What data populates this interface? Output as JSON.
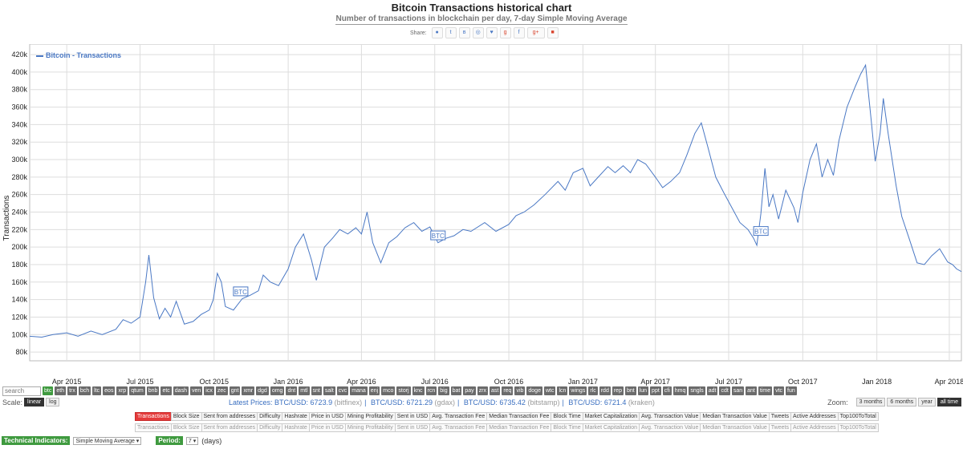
{
  "header": {
    "title": "Bitcoin Transactions historical chart",
    "subtitle": "Number of transactions in blockchain per day, 7-day Simple Moving Average",
    "share_label": "Share:"
  },
  "chart_data": {
    "type": "line",
    "ylabel": "Transactions",
    "yticks": [
      80000,
      100000,
      120000,
      140000,
      160000,
      180000,
      200000,
      220000,
      240000,
      260000,
      280000,
      300000,
      320000,
      340000,
      360000,
      380000,
      400000,
      420000
    ],
    "ytick_labels": [
      "80k",
      "100k",
      "120k",
      "140k",
      "160k",
      "180k",
      "200k",
      "220k",
      "240k",
      "260k",
      "280k",
      "300k",
      "320k",
      "340k",
      "360k",
      "380k",
      "400k",
      "420k"
    ],
    "ylim": [
      70000,
      432000
    ],
    "xlim": [
      "2015-02-14",
      "2018-04-16"
    ],
    "xticks": [
      {
        "date": "2015-04-01",
        "label": "Apr 2015"
      },
      {
        "date": "2015-07-01",
        "label": "Jul 2015"
      },
      {
        "date": "2015-10-01",
        "label": "Oct 2015"
      },
      {
        "date": "2016-01-01",
        "label": "Jan 2016"
      },
      {
        "date": "2016-04-01",
        "label": "Apr 2016"
      },
      {
        "date": "2016-07-01",
        "label": "Jul 2016"
      },
      {
        "date": "2016-10-01",
        "label": "Oct 2016"
      },
      {
        "date": "2017-01-01",
        "label": "Jan 2017"
      },
      {
        "date": "2017-04-01",
        "label": "Apr 2017"
      },
      {
        "date": "2017-07-01",
        "label": "Jul 2017"
      },
      {
        "date": "2017-10-01",
        "label": "Oct 2017"
      },
      {
        "date": "2018-01-01",
        "label": "Jan 2018"
      },
      {
        "date": "2018-04-01",
        "label": "Apr 2018"
      }
    ],
    "grid": true,
    "legend_position": "top-left",
    "series": [
      {
        "name": "Bitcoin - Transactions",
        "color": "#4a78c4",
        "points": [
          [
            "2015-02-14",
            98000
          ],
          [
            "2015-03-01",
            97000
          ],
          [
            "2015-03-15",
            100000
          ],
          [
            "2015-04-01",
            102000
          ],
          [
            "2015-04-15",
            98000
          ],
          [
            "2015-05-01",
            104000
          ],
          [
            "2015-05-15",
            100000
          ],
          [
            "2015-06-01",
            106000
          ],
          [
            "2015-06-10",
            117000
          ],
          [
            "2015-06-20",
            113000
          ],
          [
            "2015-07-01",
            120000
          ],
          [
            "2015-07-08",
            160000
          ],
          [
            "2015-07-12",
            191000
          ],
          [
            "2015-07-18",
            142000
          ],
          [
            "2015-07-25",
            118000
          ],
          [
            "2015-08-01",
            130000
          ],
          [
            "2015-08-08",
            120000
          ],
          [
            "2015-08-15",
            138000
          ],
          [
            "2015-08-25",
            112000
          ],
          [
            "2015-09-05",
            115000
          ],
          [
            "2015-09-15",
            123000
          ],
          [
            "2015-09-25",
            128000
          ],
          [
            "2015-09-30",
            140000
          ],
          [
            "2015-10-05",
            170000
          ],
          [
            "2015-10-10",
            160000
          ],
          [
            "2015-10-15",
            132000
          ],
          [
            "2015-10-25",
            128000
          ],
          [
            "2015-11-05",
            141000
          ],
          [
            "2015-11-15",
            145000
          ],
          [
            "2015-11-25",
            150000
          ],
          [
            "2015-12-01",
            168000
          ],
          [
            "2015-12-10",
            160000
          ],
          [
            "2015-12-20",
            156000
          ],
          [
            "2016-01-01",
            175000
          ],
          [
            "2016-01-10",
            200000
          ],
          [
            "2016-01-20",
            215000
          ],
          [
            "2016-01-30",
            185000
          ],
          [
            "2016-02-05",
            162000
          ],
          [
            "2016-02-15",
            200000
          ],
          [
            "2016-02-25",
            210000
          ],
          [
            "2016-03-05",
            220000
          ],
          [
            "2016-03-15",
            215000
          ],
          [
            "2016-03-25",
            222000
          ],
          [
            "2016-04-01",
            215000
          ],
          [
            "2016-04-08",
            240000
          ],
          [
            "2016-04-15",
            205000
          ],
          [
            "2016-04-25",
            182000
          ],
          [
            "2016-05-05",
            205000
          ],
          [
            "2016-05-15",
            212000
          ],
          [
            "2016-05-25",
            222000
          ],
          [
            "2016-06-05",
            228000
          ],
          [
            "2016-06-15",
            218000
          ],
          [
            "2016-06-25",
            223000
          ],
          [
            "2016-07-05",
            205000
          ],
          [
            "2016-07-15",
            210000
          ],
          [
            "2016-07-25",
            213000
          ],
          [
            "2016-08-05",
            220000
          ],
          [
            "2016-08-15",
            218000
          ],
          [
            "2016-09-01",
            228000
          ],
          [
            "2016-09-15",
            218000
          ],
          [
            "2016-10-01",
            226000
          ],
          [
            "2016-10-10",
            236000
          ],
          [
            "2016-10-20",
            240000
          ],
          [
            "2016-11-01",
            248000
          ],
          [
            "2016-11-15",
            260000
          ],
          [
            "2016-12-01",
            275000
          ],
          [
            "2016-12-10",
            265000
          ],
          [
            "2016-12-20",
            285000
          ],
          [
            "2017-01-01",
            290000
          ],
          [
            "2017-01-10",
            270000
          ],
          [
            "2017-01-20",
            280000
          ],
          [
            "2017-02-01",
            292000
          ],
          [
            "2017-02-10",
            285000
          ],
          [
            "2017-02-20",
            293000
          ],
          [
            "2017-03-01",
            285000
          ],
          [
            "2017-03-10",
            300000
          ],
          [
            "2017-03-20",
            295000
          ],
          [
            "2017-04-01",
            280000
          ],
          [
            "2017-04-10",
            268000
          ],
          [
            "2017-04-20",
            275000
          ],
          [
            "2017-05-01",
            285000
          ],
          [
            "2017-05-10",
            305000
          ],
          [
            "2017-05-20",
            330000
          ],
          [
            "2017-05-28",
            342000
          ],
          [
            "2017-06-05",
            315000
          ],
          [
            "2017-06-15",
            280000
          ],
          [
            "2017-06-25",
            262000
          ],
          [
            "2017-07-05",
            245000
          ],
          [
            "2017-07-15",
            228000
          ],
          [
            "2017-07-25",
            220000
          ],
          [
            "2017-08-01",
            210000
          ],
          [
            "2017-08-05",
            202000
          ],
          [
            "2017-08-10",
            238000
          ],
          [
            "2017-08-15",
            290000
          ],
          [
            "2017-08-20",
            246000
          ],
          [
            "2017-08-25",
            260000
          ],
          [
            "2017-09-01",
            232000
          ],
          [
            "2017-09-10",
            265000
          ],
          [
            "2017-09-20",
            245000
          ],
          [
            "2017-09-25",
            228000
          ],
          [
            "2017-10-01",
            262000
          ],
          [
            "2017-10-10",
            300000
          ],
          [
            "2017-10-18",
            318000
          ],
          [
            "2017-10-25",
            280000
          ],
          [
            "2017-11-01",
            300000
          ],
          [
            "2017-11-08",
            282000
          ],
          [
            "2017-11-15",
            322000
          ],
          [
            "2017-11-25",
            360000
          ],
          [
            "2017-12-05",
            383000
          ],
          [
            "2017-12-12",
            398000
          ],
          [
            "2017-12-18",
            408000
          ],
          [
            "2017-12-25",
            345000
          ],
          [
            "2017-12-30",
            298000
          ],
          [
            "2018-01-05",
            330000
          ],
          [
            "2018-01-09",
            370000
          ],
          [
            "2018-01-15",
            330000
          ],
          [
            "2018-01-25",
            270000
          ],
          [
            "2018-02-01",
            235000
          ],
          [
            "2018-02-10",
            210000
          ],
          [
            "2018-02-20",
            182000
          ],
          [
            "2018-03-01",
            180000
          ],
          [
            "2018-03-10",
            190000
          ],
          [
            "2018-03-20",
            198000
          ],
          [
            "2018-03-30",
            183000
          ],
          [
            "2018-04-05",
            180000
          ],
          [
            "2018-04-10",
            175000
          ],
          [
            "2018-04-16",
            172000
          ]
        ]
      }
    ],
    "annotations": [
      {
        "date": "2015-11-03",
        "value": 148000,
        "label": "BTC"
      },
      {
        "date": "2016-07-05",
        "value": 212000,
        "label": "BTC"
      },
      {
        "date": "2017-08-10",
        "value": 217000,
        "label": "BTC"
      }
    ]
  },
  "coins": {
    "search_placeholder": "search",
    "items": [
      "btc",
      "eth",
      "trx",
      "bch",
      "ltc",
      "eos",
      "xrp",
      "qtum",
      "bnb",
      "etc",
      "dash",
      "ven",
      "icx",
      "zec",
      "gnt",
      "xmr",
      "dgd",
      "omg",
      "dnt",
      "mtl",
      "snt",
      "salt",
      "cvc",
      "mana",
      "enj",
      "mco",
      "storj",
      "knc",
      "rcn",
      "big",
      "bat",
      "pay",
      "zrx",
      "ast",
      "req",
      "vib",
      "doge",
      "wtc",
      "lcn",
      "wings",
      "rlc",
      "rdd",
      "rep",
      "bnt",
      "lun",
      "ppt",
      "cfi",
      "hmq",
      "sngls",
      "adt",
      "cdt",
      "san",
      "ant",
      "time",
      "vtc",
      "fun"
    ],
    "active": "btc"
  },
  "scale": {
    "label": "Scale:",
    "options": [
      "linear",
      "log"
    ],
    "active": "linear"
  },
  "prices": {
    "label": "Latest Prices:",
    "items": [
      {
        "pair": "BTC/USD: 6723.9",
        "src": "(bitfinex)"
      },
      {
        "pair": "BTC/USD: 6721.29",
        "src": "(gdax)"
      },
      {
        "pair": "BTC/USD: 6735.42",
        "src": "(bitstamp)"
      },
      {
        "pair": "BTC/USD: 6721.4",
        "src": "(kraken)"
      }
    ]
  },
  "zoom": {
    "label": "Zoom:",
    "options": [
      "3 months",
      "6 months",
      "year",
      "all time"
    ],
    "active": "all time"
  },
  "metrics": [
    "Transactions",
    "Block Size",
    "Sent from addresses",
    "Difficulty",
    "Hashrate",
    "Price in USD",
    "Mining Profitability",
    "Sent in USD",
    "Avg. Transaction Fee",
    "Median Transaction Fee",
    "Block Time",
    "Market Capitalization",
    "Avg. Transaction Value",
    "Median Transaction Value",
    "Tweets",
    "Active Addresses",
    "Top100ToTotal"
  ],
  "metrics_active": "Transactions",
  "technical": {
    "label": "Technical Indicators:",
    "value": "Simple Moving Average",
    "period_label": "Period:",
    "period_value": "7",
    "period_unit": "(days)"
  }
}
